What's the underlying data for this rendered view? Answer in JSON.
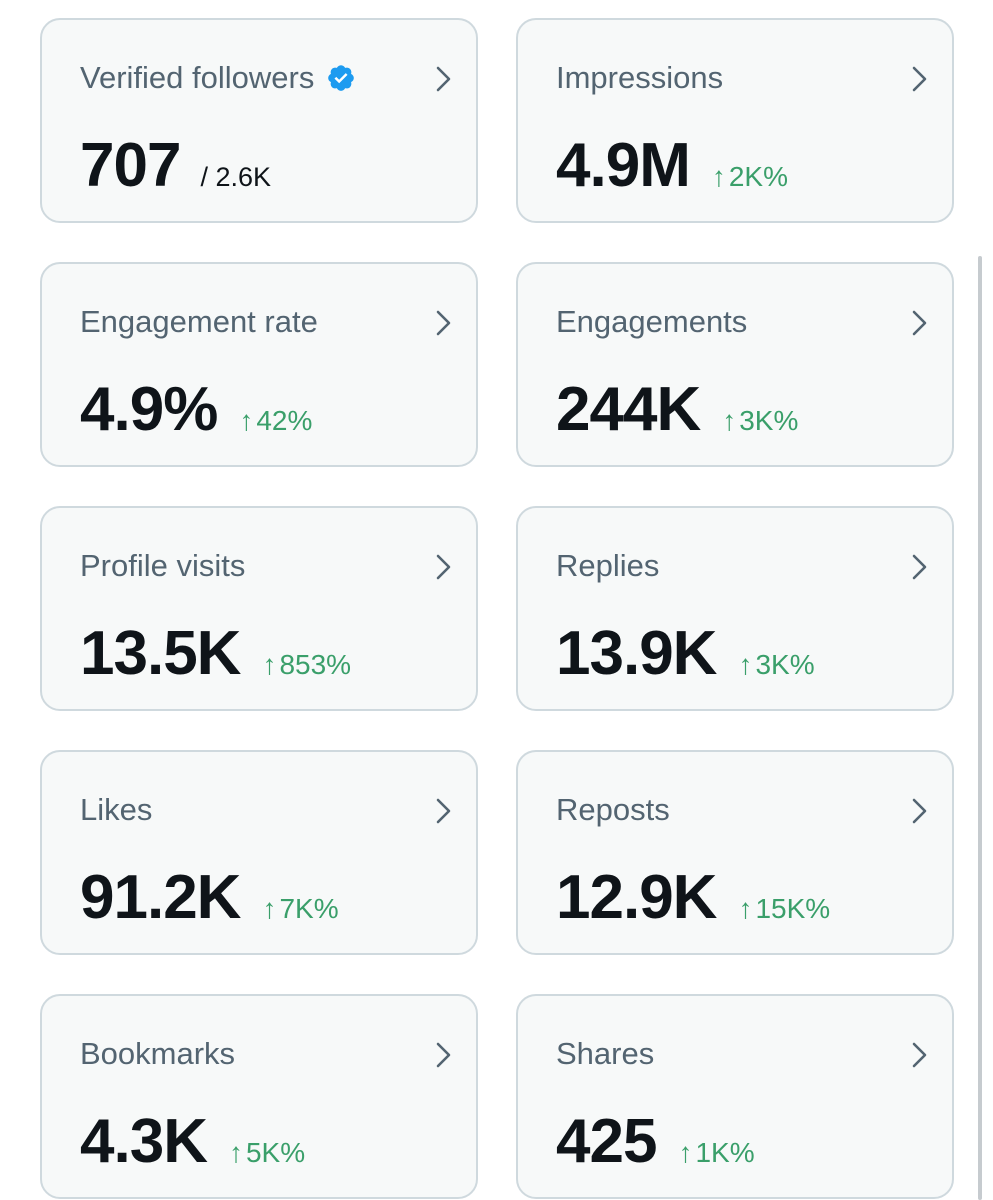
{
  "cards": [
    {
      "title": "Verified followers",
      "value": "707",
      "subtotal": "/ 2.6K",
      "verified": true
    },
    {
      "title": "Impressions",
      "value": "4.9M",
      "change": "2K%"
    },
    {
      "title": "Engagement rate",
      "value": "4.9%",
      "change": "42%"
    },
    {
      "title": "Engagements",
      "value": "244K",
      "change": "3K%"
    },
    {
      "title": "Profile visits",
      "value": "13.5K",
      "change": "853%"
    },
    {
      "title": "Replies",
      "value": "13.9K",
      "change": "3K%"
    },
    {
      "title": "Likes",
      "value": "91.2K",
      "change": "7K%"
    },
    {
      "title": "Reposts",
      "value": "12.9K",
      "change": "15K%"
    },
    {
      "title": "Bookmarks",
      "value": "4.3K",
      "change": "5K%"
    },
    {
      "title": "Shares",
      "value": "425",
      "change": "1K%"
    }
  ],
  "arrow_glyph": "↑",
  "colors": {
    "card_bg": "#f7f9f9",
    "card_border": "#cfd9de",
    "title": "#536471",
    "value": "#0f1419",
    "positive_change": "#3a9f6a",
    "verified_badge": "#1d9bf0"
  }
}
